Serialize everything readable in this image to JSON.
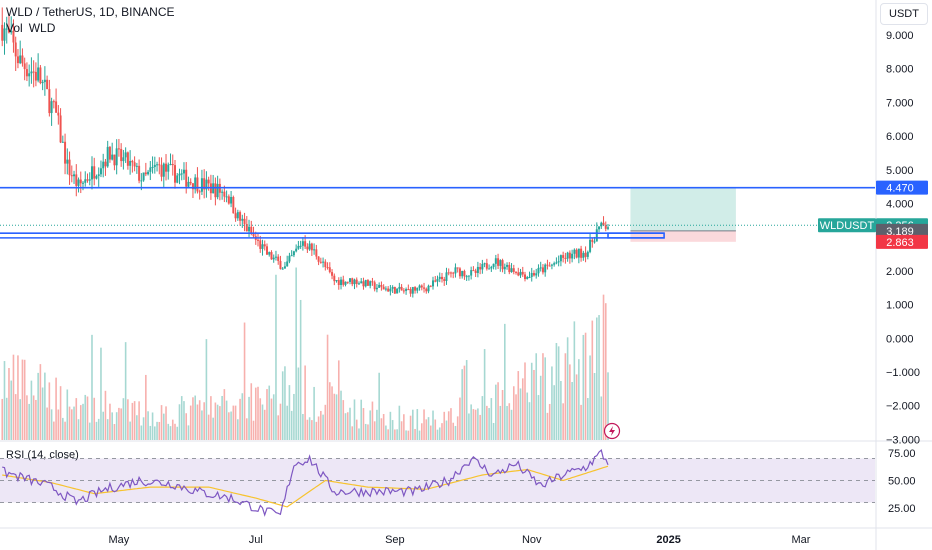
{
  "header": {
    "symbol_line": "WLD / TetherUS, 1D, BINANCE",
    "vol_label": "Vol",
    "vol_symbol": "WLD",
    "currency_button": "USDT"
  },
  "colors": {
    "up": "#26a69a",
    "down": "#ef5350",
    "line_blue": "#2962ff",
    "rsi_line": "#7e57c2",
    "rsi_ma": "#f7c32e",
    "rsi_band": "#ede7f6",
    "target_zone": "#d1ede8",
    "stop_zone": "#fbd9dc"
  },
  "chart_data": [
    {
      "type": "candlestick",
      "symbol": "WLDUSDT",
      "y_ticks": [
        "9.000",
        "8.000",
        "7.000",
        "6.000",
        "5.000",
        "4.000",
        "3.000",
        "2.000",
        "1.000",
        "0.000",
        "−1.000",
        "−2.000",
        "−3.000"
      ],
      "y_tick_values": [
        9,
        8,
        7,
        6,
        5,
        4,
        3,
        2,
        1,
        0,
        -1,
        -2,
        -3
      ],
      "ylim": [
        -3,
        10
      ],
      "x_ticks": [
        "May",
        "Jul",
        "Sep",
        "Nov",
        "2025",
        "Mar"
      ],
      "x_tick_dates": [
        "2024-05-01",
        "2024-07-01",
        "2024-09-01",
        "2024-11-01",
        "2025-01-01",
        "2025-03-01"
      ],
      "price_path": [
        [
          "2024-03-10",
          9.3
        ],
        [
          "2024-03-18",
          8.2
        ],
        [
          "2024-03-26",
          7.8
        ],
        [
          "2024-04-03",
          6.6
        ],
        [
          "2024-04-08",
          5.1
        ],
        [
          "2024-04-13",
          4.5
        ],
        [
          "2024-04-20",
          5.0
        ],
        [
          "2024-04-27",
          5.5
        ],
        [
          "2024-05-05",
          5.2
        ],
        [
          "2024-05-12",
          4.7
        ],
        [
          "2024-05-18",
          5.1
        ],
        [
          "2024-05-25",
          4.9
        ],
        [
          "2024-06-01",
          4.7
        ],
        [
          "2024-06-10",
          4.5
        ],
        [
          "2024-06-18",
          4.3
        ],
        [
          "2024-06-23",
          3.6
        ],
        [
          "2024-06-30",
          3.0
        ],
        [
          "2024-07-06",
          2.5
        ],
        [
          "2024-07-14",
          2.1
        ],
        [
          "2024-07-22",
          2.9
        ],
        [
          "2024-07-28",
          2.5
        ],
        [
          "2024-08-05",
          1.7
        ],
        [
          "2024-08-15",
          1.7
        ],
        [
          "2024-08-25",
          1.5
        ],
        [
          "2024-09-05",
          1.4
        ],
        [
          "2024-09-15",
          1.5
        ],
        [
          "2024-09-28",
          2.0
        ],
        [
          "2024-10-06",
          1.9
        ],
        [
          "2024-10-15",
          2.3
        ],
        [
          "2024-10-22",
          2.1
        ],
        [
          "2024-10-30",
          1.85
        ],
        [
          "2024-11-08",
          2.1
        ],
        [
          "2024-11-16",
          2.4
        ],
        [
          "2024-11-26",
          2.6
        ],
        [
          "2024-11-30",
          3.2
        ],
        [
          "2024-12-03",
          3.3
        ],
        [
          "2024-12-05",
          3.356
        ]
      ],
      "volume_path": [
        [
          "2024-03-10",
          25
        ],
        [
          "2024-04-10",
          15
        ],
        [
          "2024-05-15",
          10
        ],
        [
          "2024-06-20",
          14
        ],
        [
          "2024-07-15",
          22
        ],
        [
          "2024-08-15",
          11
        ],
        [
          "2024-09-15",
          8
        ],
        [
          "2024-10-15",
          14
        ],
        [
          "2024-11-15",
          28
        ],
        [
          "2024-12-05",
          42
        ]
      ],
      "price_lines": [
        {
          "name": "resistance",
          "value": 4.47,
          "label": "4.470"
        },
        {
          "name": "support-upper",
          "value": 3.12
        },
        {
          "name": "support-lower",
          "value": 2.98
        }
      ],
      "position_tool": {
        "start": "2024-12-15",
        "end": "2025-01-31",
        "entry": 3.189,
        "target": 4.47,
        "stop": 2.863
      },
      "price_labels": [
        {
          "name": "label-4470",
          "text": "4.470",
          "value": 4.47,
          "color": "#2962ff"
        },
        {
          "name": "label-last",
          "text": "3.356",
          "value": 3.356,
          "color": "#26a69a",
          "symbol": "WLDUSDT"
        },
        {
          "name": "label-entry",
          "text": "3.189",
          "value": 3.189,
          "color": "#5d606b"
        },
        {
          "name": "label-stop",
          "text": "2.863",
          "value": 2.863,
          "color": "#f23645"
        }
      ]
    },
    {
      "type": "line",
      "title": "RSI (14, close)",
      "y_ticks": [
        "75.00",
        "50.00",
        "25.00"
      ],
      "y_tick_values": [
        75,
        50,
        25
      ],
      "ylim": [
        12,
        85
      ],
      "band": [
        30,
        70
      ],
      "series": [
        {
          "name": "RSI",
          "path": [
            [
              "2024-03-10",
              58
            ],
            [
              "2024-03-20",
              52
            ],
            [
              "2024-04-01",
              44
            ],
            [
              "2024-04-12",
              30
            ],
            [
              "2024-04-25",
              42
            ],
            [
              "2024-05-10",
              50
            ],
            [
              "2024-05-25",
              47
            ],
            [
              "2024-06-05",
              40
            ],
            [
              "2024-06-20",
              34
            ],
            [
              "2024-07-05",
              22
            ],
            [
              "2024-07-12",
              18
            ],
            [
              "2024-07-18",
              65
            ],
            [
              "2024-07-25",
              70
            ],
            [
              "2024-08-05",
              40
            ],
            [
              "2024-08-20",
              40
            ],
            [
              "2024-09-10",
              40
            ],
            [
              "2024-09-25",
              50
            ],
            [
              "2024-10-05",
              70
            ],
            [
              "2024-10-15",
              55
            ],
            [
              "2024-10-25",
              65
            ],
            [
              "2024-11-05",
              45
            ],
            [
              "2024-11-15",
              55
            ],
            [
              "2024-11-25",
              62
            ],
            [
              "2024-12-02",
              75
            ],
            [
              "2024-12-05",
              66
            ]
          ]
        },
        {
          "name": "RSI MA",
          "path": [
            [
              "2024-03-10",
              55
            ],
            [
              "2024-04-01",
              48
            ],
            [
              "2024-04-20",
              38
            ],
            [
              "2024-05-15",
              44
            ],
            [
              "2024-06-10",
              44
            ],
            [
              "2024-07-01",
              34
            ],
            [
              "2024-07-15",
              26
            ],
            [
              "2024-08-01",
              50
            ],
            [
              "2024-08-20",
              44
            ],
            [
              "2024-09-15",
              42
            ],
            [
              "2024-10-10",
              55
            ],
            [
              "2024-10-30",
              60
            ],
            [
              "2024-11-15",
              50
            ],
            [
              "2024-12-05",
              63
            ]
          ]
        }
      ]
    }
  ]
}
